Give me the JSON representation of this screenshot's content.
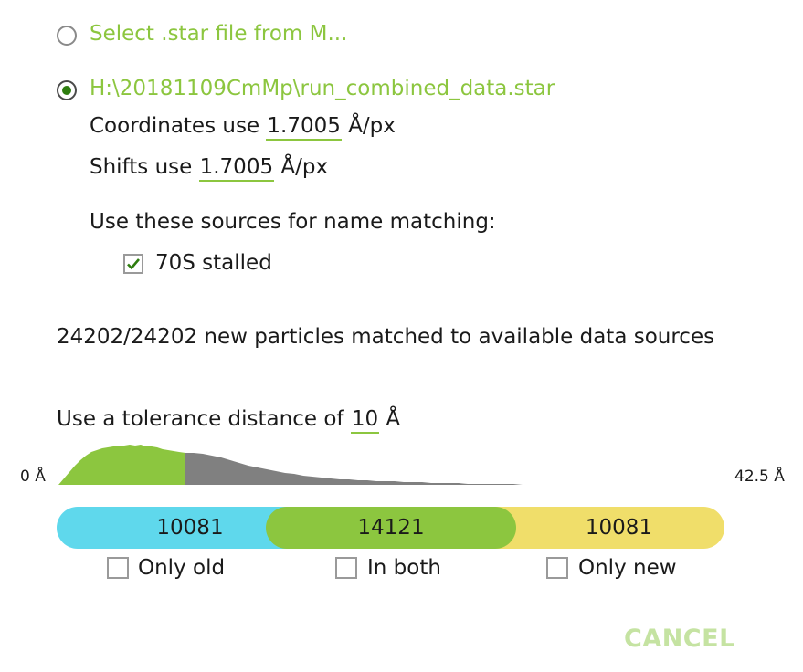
{
  "source_options": {
    "option1_label": "Select .star file from M...",
    "option2_label": "H:\\20181109CmMp\\run_combined_data.star",
    "selected_index": 2
  },
  "coordinates": {
    "prefix": "Coordinates use",
    "value": "1.7005",
    "unit": "Å/px"
  },
  "shifts": {
    "prefix": "Shifts use",
    "value": "1.7005",
    "unit": "Å/px"
  },
  "name_matching": {
    "heading": "Use these sources for name matching:",
    "sources": [
      {
        "label": "70S stalled",
        "checked": true
      }
    ]
  },
  "match_summary": "24202/24202 new particles matched to available data sources",
  "tolerance": {
    "prefix": "Use a tolerance distance of",
    "value": "10",
    "unit": "Å"
  },
  "histogram": {
    "min_label": "0 Å",
    "max_label": "42.5 Å",
    "min": 0,
    "max": 42.5,
    "threshold": 10,
    "colors": {
      "below": "#8cc63f",
      "above": "#808080"
    }
  },
  "split_bar": {
    "segments": [
      {
        "value": "10081",
        "color": "#5fd8ec"
      },
      {
        "value": "14121",
        "color": "#8cc63f"
      },
      {
        "value": "10081",
        "color": "#f0de6a"
      }
    ]
  },
  "filters": [
    {
      "label": "Only old",
      "checked": false
    },
    {
      "label": "In both",
      "checked": false
    },
    {
      "label": "Only new",
      "checked": false
    }
  ],
  "cancel_label": "CANCEL"
}
